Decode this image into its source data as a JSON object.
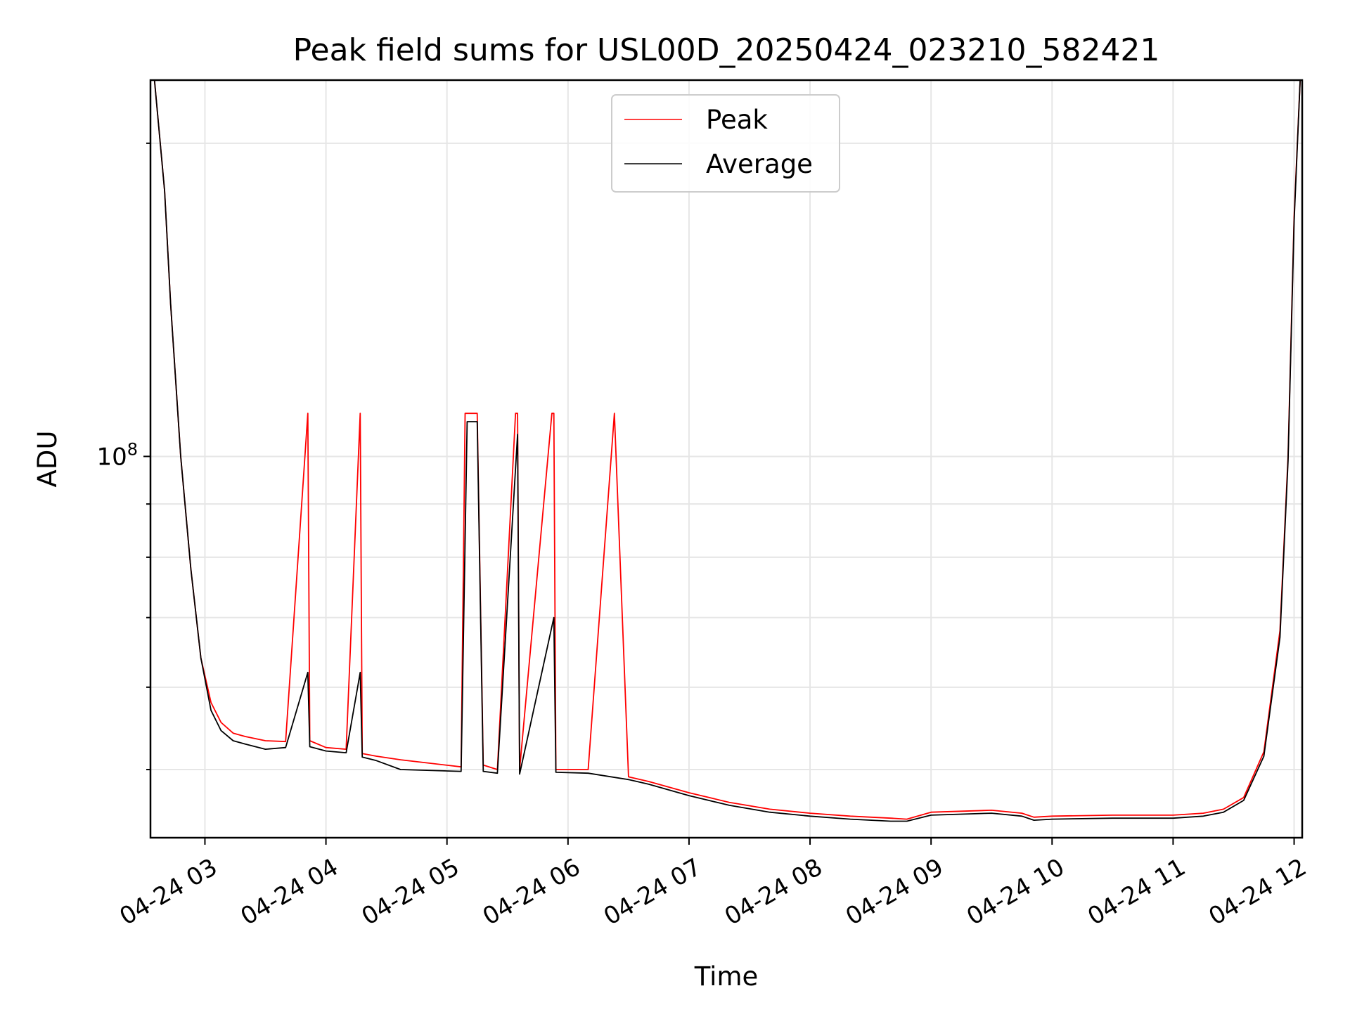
{
  "chart_data": {
    "type": "line",
    "title": "Peak field sums for USL00D_20250424_023210_582421",
    "xlabel": "Time",
    "ylabel": "ADU",
    "yscale": "log",
    "xlim": [
      "2025-04-24 02:33",
      "2025-04-24 12:04"
    ],
    "ylim": [
      43000000,
      230000000
    ],
    "grid": true,
    "legend_position": "top-center",
    "x_ticks": [
      "04-24 03",
      "04-24 04",
      "04-24 05",
      "04-24 06",
      "04-24 07",
      "04-24 08",
      "04-24 09",
      "04-24 10",
      "04-24 11",
      "04-24 12"
    ],
    "y_ticks": [
      {
        "base": "10",
        "exp": "8",
        "value": 100000000
      }
    ],
    "series": [
      {
        "name": "Peak",
        "color": "#ff0000",
        "x": [
          "2025-04-24 02:35",
          "2025-04-24 02:40",
          "2025-04-24 02:43",
          "2025-04-24 02:48",
          "2025-04-24 02:53",
          "2025-04-24 02:58",
          "2025-04-24 03:03",
          "2025-04-24 03:08",
          "2025-04-24 03:14",
          "2025-04-24 03:20",
          "2025-04-24 03:30",
          "2025-04-24 03:40",
          "2025-04-24 03:51",
          "2025-04-24 03:52",
          "2025-04-24 04:00",
          "2025-04-24 04:10",
          "2025-04-24 04:17",
          "2025-04-24 04:18",
          "2025-04-24 04:25",
          "2025-04-24 04:37",
          "2025-04-24 05:07",
          "2025-04-24 05:09",
          "2025-04-24 05:10",
          "2025-04-24 05:13",
          "2025-04-24 05:15",
          "2025-04-24 05:18",
          "2025-04-24 05:25",
          "2025-04-24 05:34",
          "2025-04-24 05:35",
          "2025-04-24 05:36",
          "2025-04-24 05:52",
          "2025-04-24 05:53",
          "2025-04-24 05:54",
          "2025-04-24 06:10",
          "2025-04-24 06:23",
          "2025-04-24 06:30",
          "2025-04-24 06:40",
          "2025-04-24 07:00",
          "2025-04-24 07:20",
          "2025-04-24 07:40",
          "2025-04-24 08:00",
          "2025-04-24 08:20",
          "2025-04-24 08:40",
          "2025-04-24 08:48",
          "2025-04-24 09:00",
          "2025-04-24 09:30",
          "2025-04-24 09:45",
          "2025-04-24 09:51",
          "2025-04-24 10:00",
          "2025-04-24 10:30",
          "2025-04-24 11:00",
          "2025-04-24 11:15",
          "2025-04-24 11:25",
          "2025-04-24 11:35",
          "2025-04-24 11:45",
          "2025-04-24 11:53",
          "2025-04-24 11:57",
          "2025-04-24 12:00",
          "2025-04-24 12:03"
        ],
        "values": [
          230000000,
          180000000,
          140000000,
          100000000,
          78000000,
          64000000,
          58000000,
          55500000,
          54200000,
          53800000,
          53300000,
          53200000,
          110000000,
          53300000,
          52500000,
          52300000,
          110000000,
          51800000,
          51500000,
          51100000,
          50300000,
          110000000,
          110000000,
          110000000,
          110000000,
          50500000,
          50000000,
          110000000,
          110000000,
          50000000,
          110000000,
          110000000,
          50000000,
          50000000,
          110000000,
          49200000,
          48700000,
          47500000,
          46500000,
          45800000,
          45400000,
          45100000,
          44900000,
          44800000,
          45500000,
          45700000,
          45400000,
          45000000,
          45100000,
          45200000,
          45200000,
          45400000,
          45800000,
          47000000,
          52000000,
          68000000,
          100000000,
          170000000,
          230000000
        ]
      },
      {
        "name": "Average",
        "color": "#000000",
        "x": [
          "2025-04-24 02:35",
          "2025-04-24 02:40",
          "2025-04-24 02:43",
          "2025-04-24 02:48",
          "2025-04-24 02:53",
          "2025-04-24 02:58",
          "2025-04-24 03:03",
          "2025-04-24 03:08",
          "2025-04-24 03:14",
          "2025-04-24 03:20",
          "2025-04-24 03:30",
          "2025-04-24 03:40",
          "2025-04-24 03:51",
          "2025-04-24 03:52",
          "2025-04-24 04:00",
          "2025-04-24 04:10",
          "2025-04-24 04:17",
          "2025-04-24 04:18",
          "2025-04-24 04:25",
          "2025-04-24 04:37",
          "2025-04-24 05:07",
          "2025-04-24 05:10",
          "2025-04-24 05:13",
          "2025-04-24 05:15",
          "2025-04-24 05:18",
          "2025-04-24 05:25",
          "2025-04-24 05:35",
          "2025-04-24 05:36",
          "2025-04-24 05:53",
          "2025-04-24 05:54",
          "2025-04-24 06:10",
          "2025-04-24 06:30",
          "2025-04-24 06:40",
          "2025-04-24 07:00",
          "2025-04-24 07:20",
          "2025-04-24 07:40",
          "2025-04-24 08:00",
          "2025-04-24 08:20",
          "2025-04-24 08:40",
          "2025-04-24 08:48",
          "2025-04-24 09:00",
          "2025-04-24 09:30",
          "2025-04-24 09:45",
          "2025-04-24 09:51",
          "2025-04-24 10:00",
          "2025-04-24 10:30",
          "2025-04-24 11:00",
          "2025-04-24 11:15",
          "2025-04-24 11:25",
          "2025-04-24 11:35",
          "2025-04-24 11:45",
          "2025-04-24 11:53",
          "2025-04-24 11:57",
          "2025-04-24 12:00",
          "2025-04-24 12:03"
        ],
        "values": [
          230000000,
          180000000,
          140000000,
          100000000,
          78000000,
          64000000,
          57000000,
          54500000,
          53300000,
          52900000,
          52300000,
          52500000,
          62000000,
          52600000,
          52100000,
          51900000,
          62000000,
          51400000,
          51000000,
          50000000,
          49800000,
          108000000,
          108000000,
          108000000,
          49800000,
          49600000,
          105000000,
          49500000,
          70000000,
          49700000,
          49600000,
          48900000,
          48400000,
          47200000,
          46200000,
          45500000,
          45100000,
          44800000,
          44600000,
          44600000,
          45200000,
          45400000,
          45100000,
          44700000,
          44800000,
          44900000,
          44900000,
          45100000,
          45500000,
          46700000,
          51500000,
          67000000,
          99000000,
          168000000,
          230000000
        ]
      }
    ]
  }
}
